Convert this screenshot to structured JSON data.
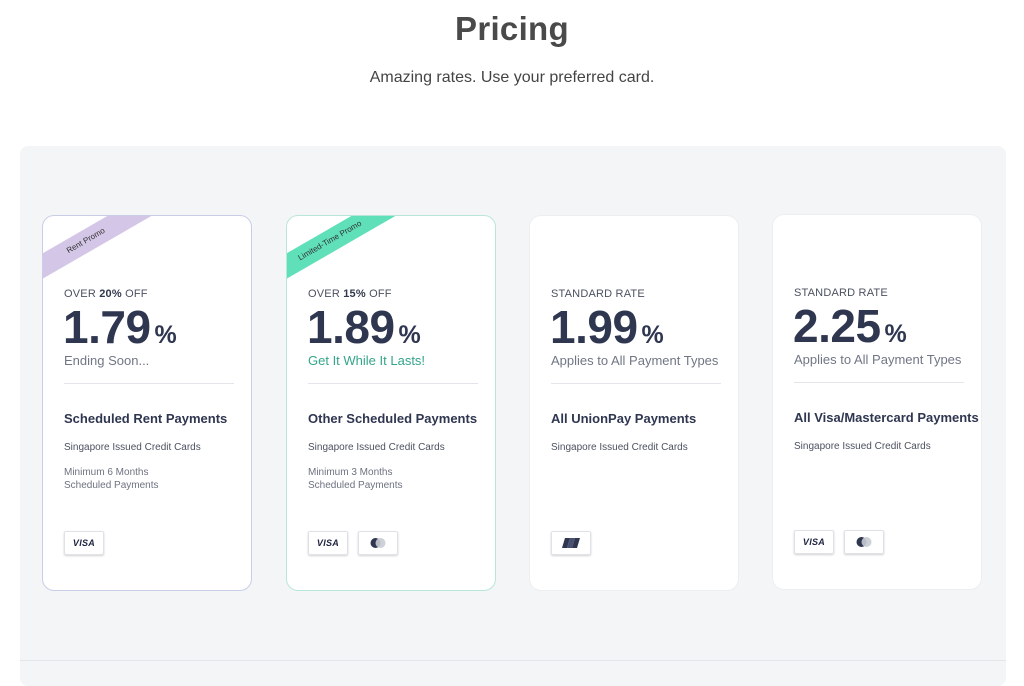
{
  "header": {
    "title": "Pricing",
    "subtitle": "Amazing rates. Use your preferred card."
  },
  "cards": [
    {
      "ribbon": "Rent Promo",
      "kicker_prefix": "OVER ",
      "kicker_bold": "20%",
      "kicker_suffix": " OFF",
      "rate": "1.79",
      "unit": "%",
      "note": "Ending Soon...",
      "title": "Scheduled Rent Payments",
      "subtitle": "Singapore Issued Credit Cards",
      "min_line1": "Minimum 6 Months",
      "min_line2": "Scheduled Payments",
      "badges": [
        "VISA"
      ]
    },
    {
      "ribbon": "Limited-Time Promo",
      "kicker_prefix": "OVER ",
      "kicker_bold": "15%",
      "kicker_suffix": " OFF",
      "rate": "1.89",
      "unit": "%",
      "note": "Get It While It Lasts!",
      "title": "Other Scheduled Payments",
      "subtitle": "Singapore Issued Credit Cards",
      "min_line1": "Minimum 3 Months",
      "min_line2": "Scheduled Payments",
      "badges": [
        "VISA",
        "mastercard-icon"
      ]
    },
    {
      "kicker": "STANDARD RATE",
      "rate": "1.99",
      "unit": "%",
      "note": "Applies to All Payment Types",
      "title": "All UnionPay Payments",
      "subtitle": "Singapore Issued Credit Cards",
      "badges": [
        "unionpay-icon"
      ]
    },
    {
      "kicker": "STANDARD RATE",
      "rate": "2.25",
      "unit": "%",
      "note": "Applies to All Payment Types",
      "title": "All Visa/Mastercard Payments",
      "subtitle": "Singapore Issued Credit Cards",
      "badges": [
        "VISA",
        "mastercard-icon"
      ]
    }
  ],
  "colors": {
    "purple_ribbon": "#d4c6e6",
    "green_ribbon": "#5fe0b8",
    "teal_note": "#34a58a",
    "rate_text": "#2f3650"
  }
}
